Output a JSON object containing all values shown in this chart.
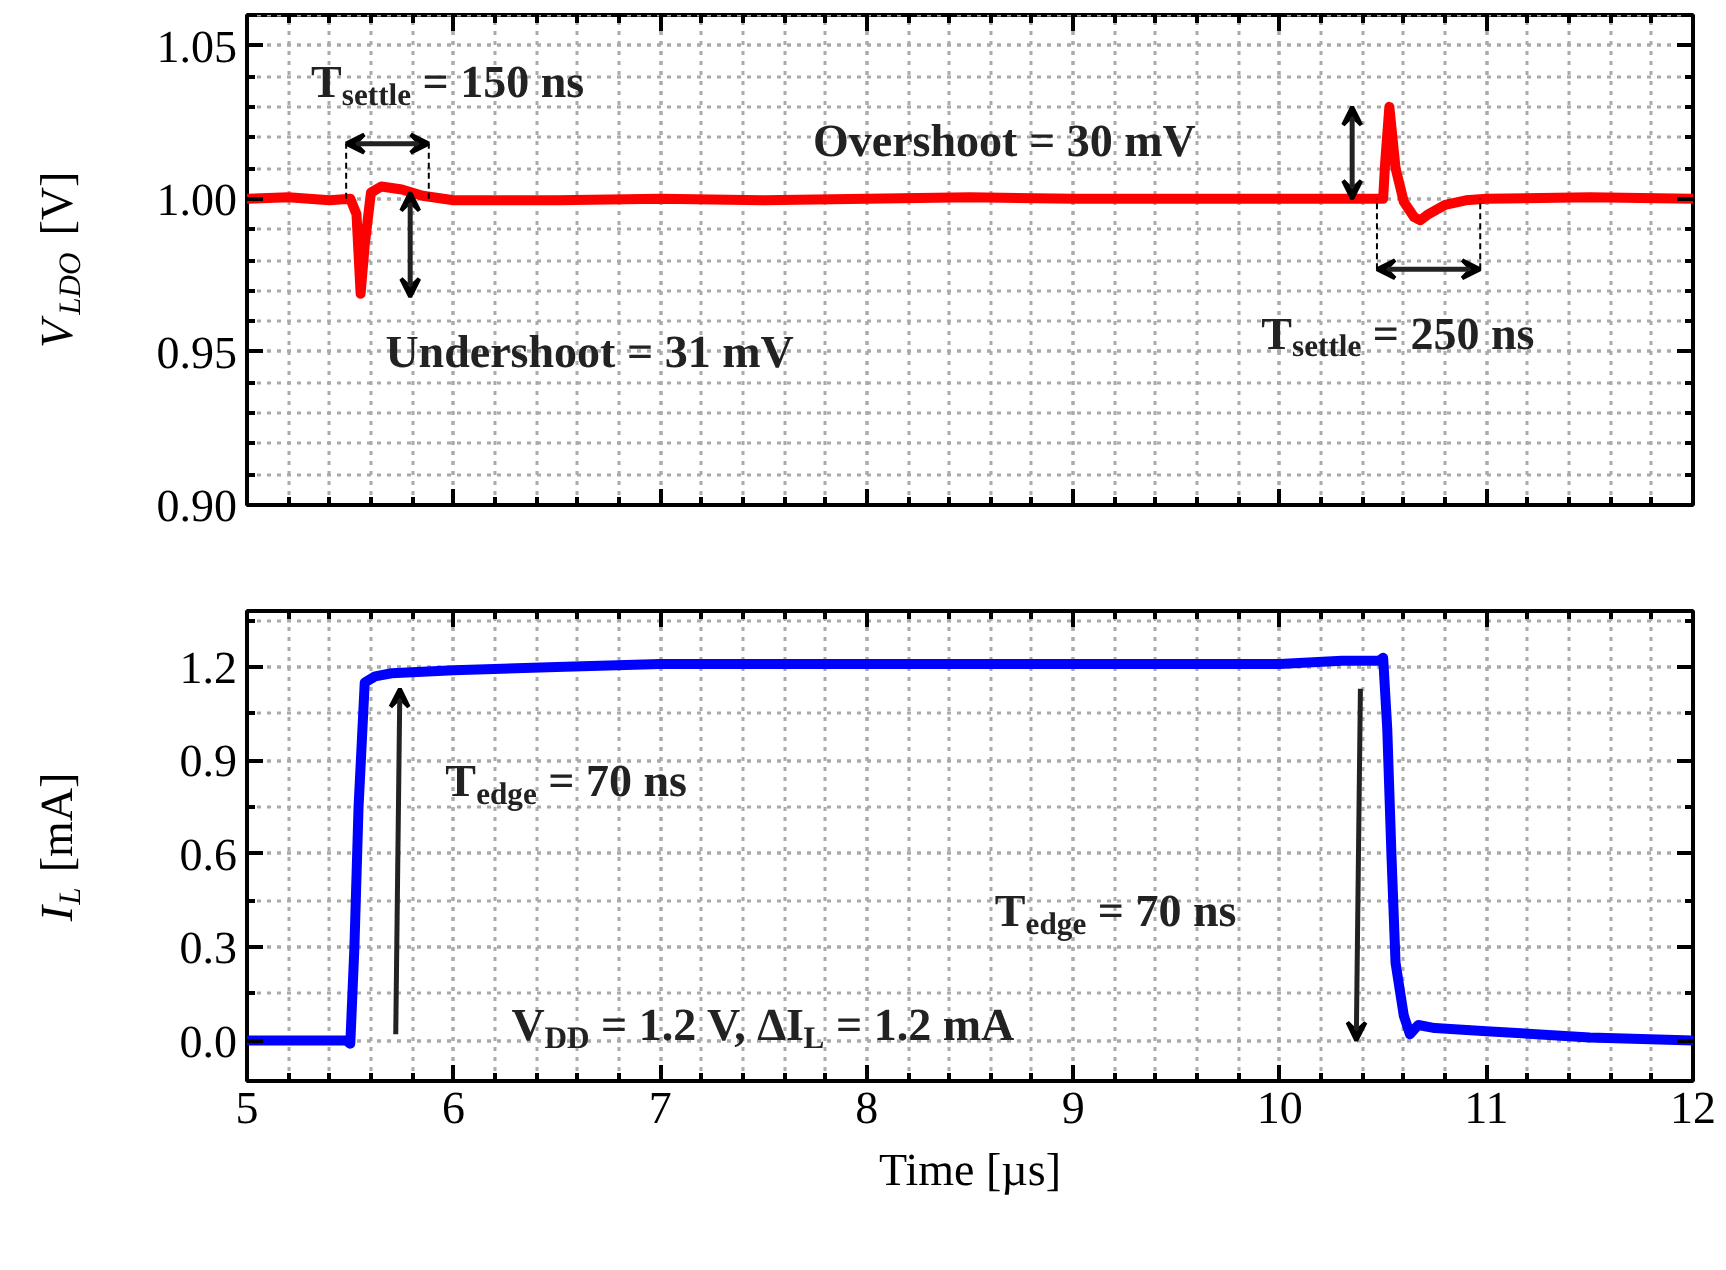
{
  "chart_data": [
    {
      "type": "line",
      "ylabel": "V$_{LDO}$ [V]",
      "xlim": [
        5,
        12
      ],
      "xticks": [
        5,
        6,
        7,
        8,
        9,
        10,
        11,
        12
      ],
      "ylim": [
        0.9,
        1.06
      ],
      "yticks": [
        {
          "value": 0.9,
          "label": "0.90"
        },
        0.95,
        {
          "value": 1.0,
          "label": "1.00"
        },
        1.05
      ],
      "grid": true,
      "tick_labels": "y",
      "line_style": "solid",
      "marker": "none",
      "series": [
        {
          "color": "#ff0000",
          "x": [
            5.0,
            5.2,
            5.4,
            5.5,
            5.53,
            5.55,
            5.57,
            5.6,
            5.65,
            5.75,
            5.85,
            6.0,
            6.5,
            7.0,
            7.5,
            8.0,
            8.5,
            9.0,
            9.5,
            10.0,
            10.5,
            10.51,
            10.53,
            10.56,
            10.6,
            10.65,
            10.68,
            10.72,
            10.8,
            10.9,
            11.0,
            11.5,
            12.0
          ],
          "values": [
            1.0,
            1.0005,
            0.9995,
            1.0,
            0.995,
            0.969,
            0.985,
            1.002,
            1.004,
            1.003,
            1.001,
            0.9995,
            0.9995,
            1.0,
            0.9995,
            1.0,
            1.0005,
            1.0,
            1.0,
            1.0,
            1.0,
            1.012,
            1.03,
            1.01,
            0.999,
            0.994,
            0.993,
            0.995,
            0.998,
            0.9995,
            1.0,
            1.0005,
            1.0
          ]
        }
      ],
      "annotations": [
        "T$_{settle}$ = 150 ns",
        "Undershoot = 31 mV",
        "Overshoot = 30 mV",
        "T$_{settle}$ = 250 ns"
      ]
    },
    {
      "type": "line",
      "xlabel": "Time [µs]",
      "ylabel": "I$_{L}$ [mA]",
      "xlim": [
        5,
        12
      ],
      "xticks": [
        5,
        6,
        7,
        8,
        9,
        10,
        11,
        12
      ],
      "ylim": [
        -0.13,
        1.38
      ],
      "yticks": [
        {
          "value": 0.0,
          "label": "0.0"
        },
        0.3,
        0.6,
        0.9,
        1.2
      ],
      "grid": true,
      "line_style": "solid",
      "marker": "none",
      "series": [
        {
          "color": "#0000ff",
          "x": [
            5.0,
            5.3,
            5.48,
            5.5,
            5.52,
            5.54,
            5.57,
            5.62,
            5.7,
            6.0,
            6.5,
            7.0,
            7.5,
            8.0,
            8.5,
            9.0,
            9.5,
            10.0,
            10.3,
            10.48,
            10.5,
            10.52,
            10.54,
            10.56,
            10.6,
            10.63,
            10.67,
            10.75,
            11.0,
            11.5,
            12.0
          ],
          "values": [
            0.0,
            0.0,
            0.0,
            -0.01,
            0.3,
            0.75,
            1.15,
            1.17,
            1.18,
            1.19,
            1.2,
            1.21,
            1.21,
            1.21,
            1.21,
            1.21,
            1.21,
            1.21,
            1.22,
            1.22,
            1.23,
            1.0,
            0.6,
            0.25,
            0.08,
            0.02,
            0.05,
            0.04,
            0.03,
            0.01,
            0.0
          ]
        }
      ],
      "annotations": [
        "T$_{edge}$ = 70 ns",
        "T$_{edge}$ = 70 ns",
        "V$_{DD}$ = 1.2 V, ΔI$_{L}$ = 1.2 mA"
      ]
    }
  ]
}
